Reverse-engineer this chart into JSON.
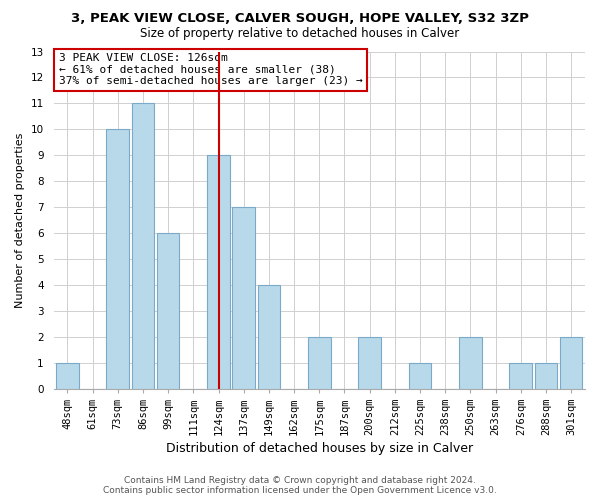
{
  "title": "3, PEAK VIEW CLOSE, CALVER SOUGH, HOPE VALLEY, S32 3ZP",
  "subtitle": "Size of property relative to detached houses in Calver",
  "xlabel": "Distribution of detached houses by size in Calver",
  "ylabel": "Number of detached properties",
  "categories": [
    "48sqm",
    "61sqm",
    "73sqm",
    "86sqm",
    "99sqm",
    "111sqm",
    "124sqm",
    "137sqm",
    "149sqm",
    "162sqm",
    "175sqm",
    "187sqm",
    "200sqm",
    "212sqm",
    "225sqm",
    "238sqm",
    "250sqm",
    "263sqm",
    "276sqm",
    "288sqm",
    "301sqm"
  ],
  "values": [
    1,
    0,
    10,
    11,
    6,
    0,
    9,
    7,
    4,
    0,
    2,
    0,
    2,
    0,
    1,
    0,
    2,
    0,
    1,
    1,
    2
  ],
  "bar_color": "#b8d9ea",
  "bar_edge_color": "#7baac8",
  "highlight_index": 6,
  "highlight_line_color": "#cc0000",
  "annotation_text": "3 PEAK VIEW CLOSE: 126sqm\n← 61% of detached houses are smaller (38)\n37% of semi-detached houses are larger (23) →",
  "annotation_box_edge": "#cc0000",
  "ylim": [
    0,
    13
  ],
  "yticks": [
    0,
    1,
    2,
    3,
    4,
    5,
    6,
    7,
    8,
    9,
    10,
    11,
    12,
    13
  ],
  "footer_line1": "Contains HM Land Registry data © Crown copyright and database right 2024.",
  "footer_line2": "Contains public sector information licensed under the Open Government Licence v3.0.",
  "background_color": "#ffffff",
  "grid_color": "#d0d0d0",
  "title_fontsize": 9.5,
  "subtitle_fontsize": 8.5,
  "ylabel_fontsize": 8,
  "xlabel_fontsize": 9,
  "tick_fontsize": 7.5,
  "annotation_fontsize": 8,
  "footer_fontsize": 6.5
}
